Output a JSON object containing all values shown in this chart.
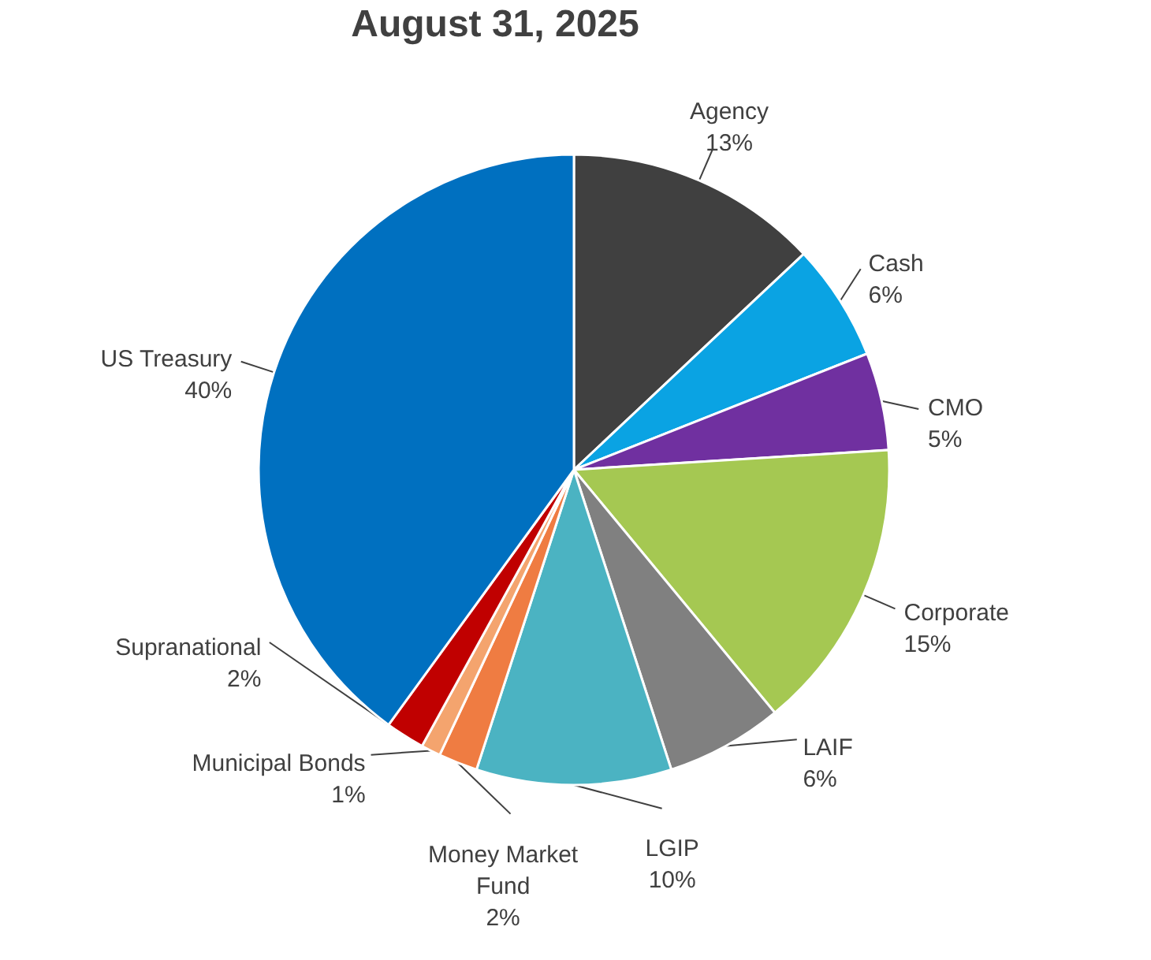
{
  "chart_data": {
    "type": "pie",
    "title": "August 31, 2025",
    "categories": [
      "Agency",
      "Cash",
      "CMO",
      "Corporate",
      "LAIF",
      "LGIP",
      "Money Market Fund",
      "Municipal Bonds",
      "Supranational",
      "US Treasury"
    ],
    "values": [
      13,
      6,
      5,
      15,
      6,
      10,
      2,
      1,
      2,
      40
    ],
    "value_labels": [
      "13%",
      "6%",
      "5%",
      "15%",
      "6%",
      "10%",
      "2%",
      "1%",
      "2%",
      "40%"
    ],
    "colors": [
      "#404040",
      "#0aa3e3",
      "#7030a0",
      "#a5c852",
      "#808080",
      "#4bb3c2",
      "#ef7c42",
      "#f4a46e",
      "#c00000",
      "#0070c0"
    ],
    "legend": false
  }
}
